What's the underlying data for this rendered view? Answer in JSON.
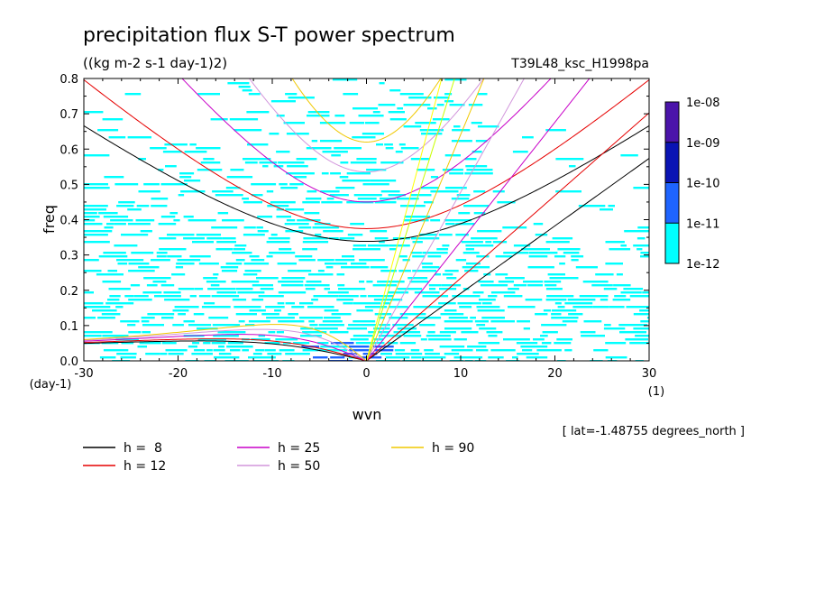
{
  "chart_data": {
    "type": "heatmap",
    "title": "precipitation flux S-T power spectrum",
    "units": "((kg m-2 s-1 day-1)2)",
    "run_label": "T39L48_ksc_H1998pa",
    "xlabel": "wvn",
    "ylabel": "freq",
    "x_unit": "(1)",
    "y_unit": "(day-1)",
    "xlim": [
      -30,
      30
    ],
    "ylim": [
      0,
      0.8
    ],
    "x_ticks": [
      "-30",
      "-20",
      "-10",
      "0",
      "10",
      "20",
      "30"
    ],
    "y_ticks": [
      "0.0",
      "0.1",
      "0.2",
      "0.3",
      "0.4",
      "0.5",
      "0.6",
      "0.7",
      "0.8"
    ],
    "lat_note": "[ lat=-1.48755 degrees_north ]",
    "colorbar": {
      "levels": [
        "1e-12",
        "1e-11",
        "1e-10",
        "1e-09",
        "1e-08"
      ],
      "colors": [
        "#00ffff",
        "#1e64ff",
        "#0a14b4",
        "#4b14aa"
      ]
    },
    "curves": [
      {
        "label": "h =  8",
        "h": 8,
        "color": "#000000"
      },
      {
        "label": "h = 12",
        "h": 12,
        "color": "#e60000"
      },
      {
        "label": "h = 25",
        "h": 25,
        "color": "#c800c8"
      },
      {
        "label": "h = 50",
        "h": 50,
        "color": "#d296dc"
      },
      {
        "label": "h = 90",
        "h": 90,
        "color": "#f0c800"
      }
    ],
    "extra_curve_colors": [
      "#c8ff00",
      "#ffff00"
    ]
  }
}
